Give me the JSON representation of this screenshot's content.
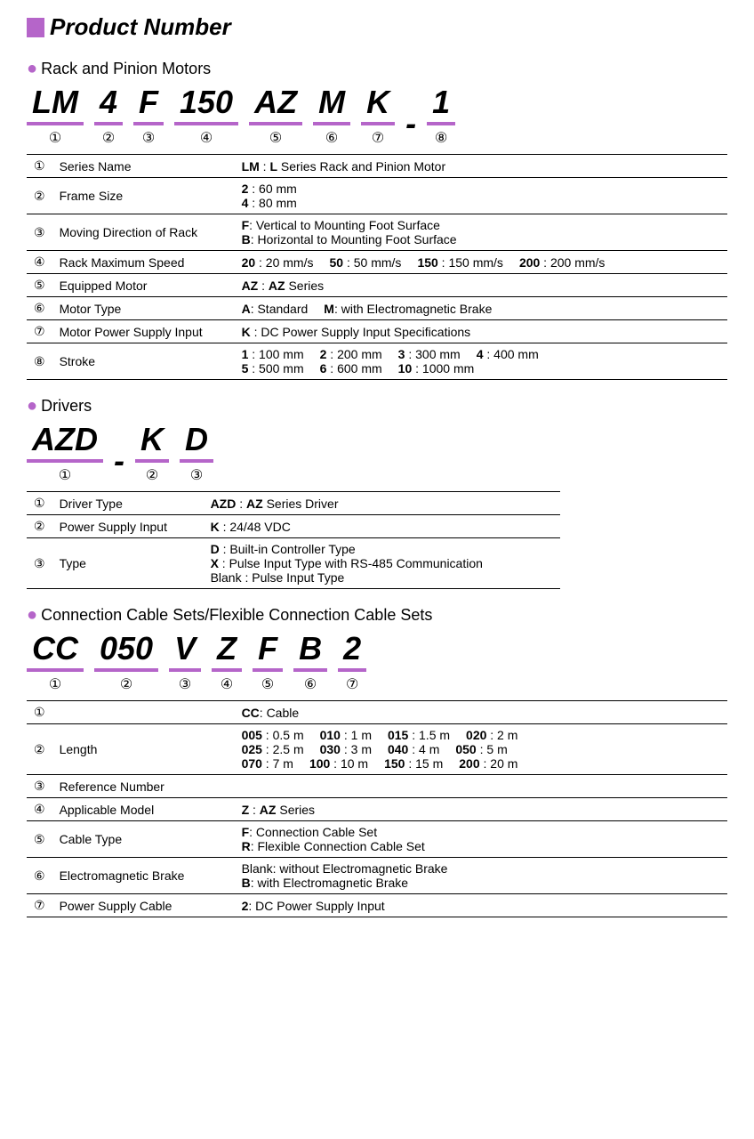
{
  "colors": {
    "accent": "#b565c9",
    "text": "#000000",
    "bg": "#ffffff"
  },
  "mainTitle": "Product Number",
  "sections": [
    {
      "title": "Rack and Pinion Motors",
      "segments": [
        "LM",
        "4",
        "F",
        "150",
        "AZ",
        "M",
        "K",
        "-",
        "1"
      ],
      "segNums": [
        "①",
        "②",
        "③",
        "④",
        "⑤",
        "⑥",
        "⑦",
        "",
        "⑧"
      ],
      "tableLabelWidth": 205,
      "rows": [
        {
          "n": "①",
          "label": "Series Name",
          "desc": "<span class='b'>LM</span> : <span class='b'>L</span> Series Rack and Pinion Motor"
        },
        {
          "n": "②",
          "label": "Frame Size",
          "desc": "<span class='b'>2</span> : 60 mm<br><span class='b'>4</span> : 80 mm"
        },
        {
          "n": "③",
          "label": "Moving Direction of Rack",
          "desc": "<span class='b'>F</span>: Vertical to Mounting Foot Surface<br><span class='b'>B</span>: Horizontal to Mounting Foot Surface"
        },
        {
          "n": "④",
          "label": "Rack Maximum Speed",
          "desc": "<span class='b'>20</span> : 20 mm/s<span class='gap'></span><span class='b'>50</span> : 50 mm/s<span class='gap'></span><span class='b'>150</span> : 150 mm/s<span class='gap'></span><span class='b'>200</span> : 200 mm/s"
        },
        {
          "n": "⑤",
          "label": "Equipped Motor",
          "desc": "<span class='b'>AZ</span> : <span class='b'>AZ</span> Series"
        },
        {
          "n": "⑥",
          "label": "Motor Type",
          "desc": "<span class='b'>A</span>: Standard<span class='gap'></span><span class='b'>M</span>: with Electromagnetic Brake"
        },
        {
          "n": "⑦",
          "label": "Motor Power Supply Input",
          "desc": "<span class='b'>K</span> : DC Power Supply Input Specifications"
        },
        {
          "n": "⑧",
          "label": "Stroke",
          "desc": "<span class='b'>1</span> : 100 mm<span class='gap'></span><span class='b'>2</span> : 200 mm<span class='gap'></span><span class='b'>3</span> : 300 mm<span class='gap'></span><span class='b'>4</span> : 400 mm<br><span class='b'>5</span> : 500 mm<span class='gap'></span><span class='b'>6</span> : 600 mm<span class='gap'></span><span class='b'>10</span> : 1000 mm"
        }
      ]
    },
    {
      "title": "Drivers",
      "segments": [
        "AZD",
        "-",
        "K",
        "D"
      ],
      "segNums": [
        "①",
        "",
        "②",
        "③"
      ],
      "tableLabelWidth": 170,
      "tableMaxWidth": 600,
      "rows": [
        {
          "n": "①",
          "label": "Driver Type",
          "desc": "<span class='b'>AZD</span> : <span class='b'>AZ</span> Series Driver"
        },
        {
          "n": "②",
          "label": "Power Supply Input",
          "desc": "<span class='b'>K</span> : 24/48 VDC"
        },
        {
          "n": "③",
          "label": "Type",
          "desc": "<span class='b'>D</span> : Built-in Controller Type<br><span class='b'>X</span> : Pulse Input Type with RS-485 Communication<br>Blank : Pulse Input Type"
        }
      ]
    },
    {
      "title": "Connection Cable Sets/Flexible Connection Cable Sets",
      "segments": [
        "CC",
        "050",
        "V",
        "Z",
        "F",
        "B",
        "2"
      ],
      "segNums": [
        "①",
        "②",
        "③",
        "④",
        "⑤",
        "⑥",
        "⑦"
      ],
      "tableLabelWidth": 205,
      "rows": [
        {
          "n": "①",
          "label": "",
          "desc": "<span class='b'>CC</span>: Cable"
        },
        {
          "n": "②",
          "label": "Length",
          "desc": "<span class='b'>005</span> : 0.5 m<span class='gap'></span><span class='b'>010</span> : 1 m<span class='gap'></span><span class='b'>015</span> : 1.5 m<span class='gap'></span><span class='b'>020</span> : 2 m<br><span class='b'>025</span> : 2.5 m<span class='gap'></span><span class='b'>030</span> : 3 m<span class='gap'></span><span class='b'>040</span> : 4 m<span class='gap'></span><span class='b'>050</span> : 5 m<br><span class='b'>070</span> : 7 m<span class='gap'></span><span class='b'>100</span> : 10 m<span class='gap'></span><span class='b'>150</span> : 15 m<span class='gap'></span><span class='b'>200</span> : 20 m"
        },
        {
          "n": "③",
          "label": "Reference Number",
          "desc": ""
        },
        {
          "n": "④",
          "label": "Applicable Model",
          "desc": "<span class='b'>Z</span> : <span class='b'>AZ</span> Series"
        },
        {
          "n": "⑤",
          "label": "Cable Type",
          "desc": "<span class='b'>F</span>: Connection Cable Set<br><span class='b'>R</span>: Flexible Connection Cable Set"
        },
        {
          "n": "⑥",
          "label": "Electromagnetic Brake",
          "desc": "Blank: without Electromagnetic Brake<br><span class='b'>B</span>: with Electromagnetic Brake"
        },
        {
          "n": "⑦",
          "label": "Power Supply Cable",
          "desc": "<span class='b'>2</span>: DC Power Supply Input"
        }
      ]
    }
  ]
}
